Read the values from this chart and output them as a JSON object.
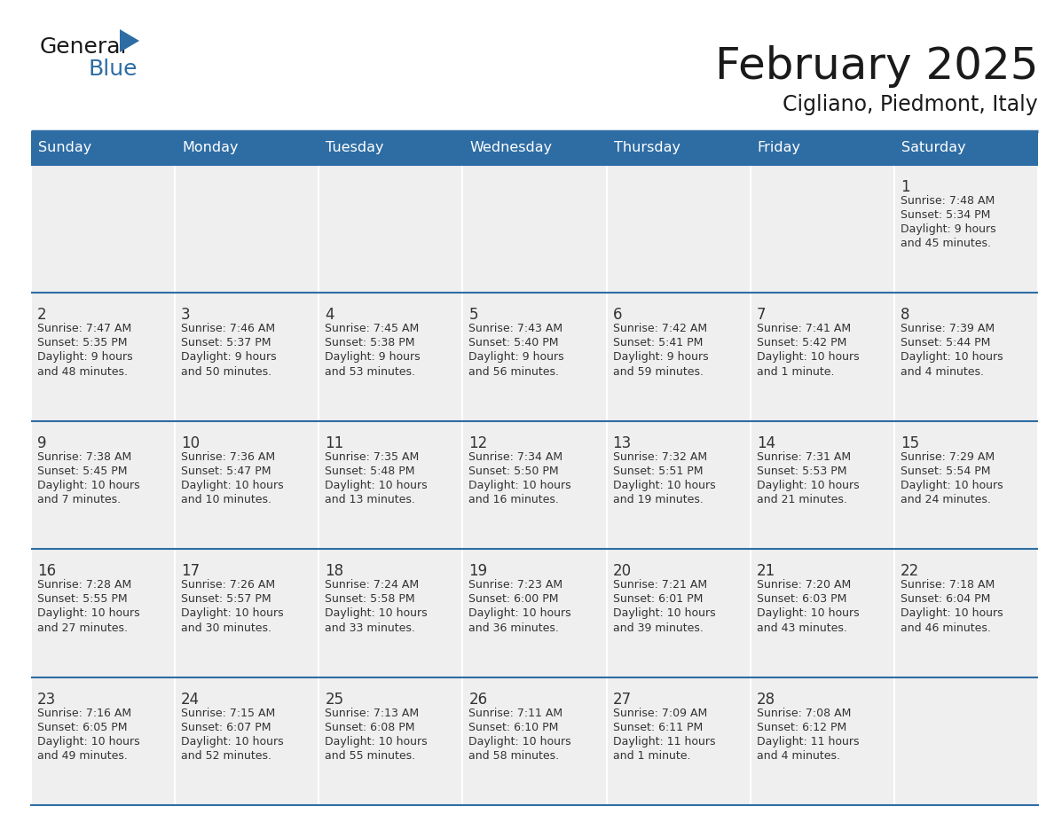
{
  "title": "February 2025",
  "subtitle": "Cigliano, Piedmont, Italy",
  "header_bg_color": "#2E6DA4",
  "header_text_color": "#FFFFFF",
  "cell_bg_color": "#EFEFEF",
  "text_color": "#333333",
  "separator_color": "#2E6DA4",
  "day_headers": [
    "Sunday",
    "Monday",
    "Tuesday",
    "Wednesday",
    "Thursday",
    "Friday",
    "Saturday"
  ],
  "logo_general_color": "#1a1a1a",
  "logo_blue_color": "#2E6DA4",
  "calendar_data": [
    [
      null,
      null,
      null,
      null,
      null,
      null,
      {
        "day": "1",
        "sunrise": "Sunrise: 7:48 AM",
        "sunset": "Sunset: 5:34 PM",
        "daylight": "Daylight: 9 hours\nand 45 minutes."
      }
    ],
    [
      {
        "day": "2",
        "sunrise": "Sunrise: 7:47 AM",
        "sunset": "Sunset: 5:35 PM",
        "daylight": "Daylight: 9 hours\nand 48 minutes."
      },
      {
        "day": "3",
        "sunrise": "Sunrise: 7:46 AM",
        "sunset": "Sunset: 5:37 PM",
        "daylight": "Daylight: 9 hours\nand 50 minutes."
      },
      {
        "day": "4",
        "sunrise": "Sunrise: 7:45 AM",
        "sunset": "Sunset: 5:38 PM",
        "daylight": "Daylight: 9 hours\nand 53 minutes."
      },
      {
        "day": "5",
        "sunrise": "Sunrise: 7:43 AM",
        "sunset": "Sunset: 5:40 PM",
        "daylight": "Daylight: 9 hours\nand 56 minutes."
      },
      {
        "day": "6",
        "sunrise": "Sunrise: 7:42 AM",
        "sunset": "Sunset: 5:41 PM",
        "daylight": "Daylight: 9 hours\nand 59 minutes."
      },
      {
        "day": "7",
        "sunrise": "Sunrise: 7:41 AM",
        "sunset": "Sunset: 5:42 PM",
        "daylight": "Daylight: 10 hours\nand 1 minute."
      },
      {
        "day": "8",
        "sunrise": "Sunrise: 7:39 AM",
        "sunset": "Sunset: 5:44 PM",
        "daylight": "Daylight: 10 hours\nand 4 minutes."
      }
    ],
    [
      {
        "day": "9",
        "sunrise": "Sunrise: 7:38 AM",
        "sunset": "Sunset: 5:45 PM",
        "daylight": "Daylight: 10 hours\nand 7 minutes."
      },
      {
        "day": "10",
        "sunrise": "Sunrise: 7:36 AM",
        "sunset": "Sunset: 5:47 PM",
        "daylight": "Daylight: 10 hours\nand 10 minutes."
      },
      {
        "day": "11",
        "sunrise": "Sunrise: 7:35 AM",
        "sunset": "Sunset: 5:48 PM",
        "daylight": "Daylight: 10 hours\nand 13 minutes."
      },
      {
        "day": "12",
        "sunrise": "Sunrise: 7:34 AM",
        "sunset": "Sunset: 5:50 PM",
        "daylight": "Daylight: 10 hours\nand 16 minutes."
      },
      {
        "day": "13",
        "sunrise": "Sunrise: 7:32 AM",
        "sunset": "Sunset: 5:51 PM",
        "daylight": "Daylight: 10 hours\nand 19 minutes."
      },
      {
        "day": "14",
        "sunrise": "Sunrise: 7:31 AM",
        "sunset": "Sunset: 5:53 PM",
        "daylight": "Daylight: 10 hours\nand 21 minutes."
      },
      {
        "day": "15",
        "sunrise": "Sunrise: 7:29 AM",
        "sunset": "Sunset: 5:54 PM",
        "daylight": "Daylight: 10 hours\nand 24 minutes."
      }
    ],
    [
      {
        "day": "16",
        "sunrise": "Sunrise: 7:28 AM",
        "sunset": "Sunset: 5:55 PM",
        "daylight": "Daylight: 10 hours\nand 27 minutes."
      },
      {
        "day": "17",
        "sunrise": "Sunrise: 7:26 AM",
        "sunset": "Sunset: 5:57 PM",
        "daylight": "Daylight: 10 hours\nand 30 minutes."
      },
      {
        "day": "18",
        "sunrise": "Sunrise: 7:24 AM",
        "sunset": "Sunset: 5:58 PM",
        "daylight": "Daylight: 10 hours\nand 33 minutes."
      },
      {
        "day": "19",
        "sunrise": "Sunrise: 7:23 AM",
        "sunset": "Sunset: 6:00 PM",
        "daylight": "Daylight: 10 hours\nand 36 minutes."
      },
      {
        "day": "20",
        "sunrise": "Sunrise: 7:21 AM",
        "sunset": "Sunset: 6:01 PM",
        "daylight": "Daylight: 10 hours\nand 39 minutes."
      },
      {
        "day": "21",
        "sunrise": "Sunrise: 7:20 AM",
        "sunset": "Sunset: 6:03 PM",
        "daylight": "Daylight: 10 hours\nand 43 minutes."
      },
      {
        "day": "22",
        "sunrise": "Sunrise: 7:18 AM",
        "sunset": "Sunset: 6:04 PM",
        "daylight": "Daylight: 10 hours\nand 46 minutes."
      }
    ],
    [
      {
        "day": "23",
        "sunrise": "Sunrise: 7:16 AM",
        "sunset": "Sunset: 6:05 PM",
        "daylight": "Daylight: 10 hours\nand 49 minutes."
      },
      {
        "day": "24",
        "sunrise": "Sunrise: 7:15 AM",
        "sunset": "Sunset: 6:07 PM",
        "daylight": "Daylight: 10 hours\nand 52 minutes."
      },
      {
        "day": "25",
        "sunrise": "Sunrise: 7:13 AM",
        "sunset": "Sunset: 6:08 PM",
        "daylight": "Daylight: 10 hours\nand 55 minutes."
      },
      {
        "day": "26",
        "sunrise": "Sunrise: 7:11 AM",
        "sunset": "Sunset: 6:10 PM",
        "daylight": "Daylight: 10 hours\nand 58 minutes."
      },
      {
        "day": "27",
        "sunrise": "Sunrise: 7:09 AM",
        "sunset": "Sunset: 6:11 PM",
        "daylight": "Daylight: 11 hours\nand 1 minute."
      },
      {
        "day": "28",
        "sunrise": "Sunrise: 7:08 AM",
        "sunset": "Sunset: 6:12 PM",
        "daylight": "Daylight: 11 hours\nand 4 minutes."
      },
      null
    ]
  ]
}
